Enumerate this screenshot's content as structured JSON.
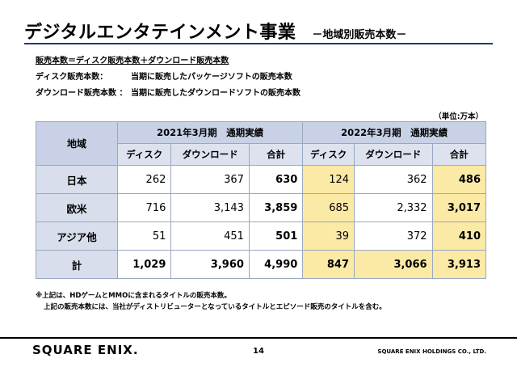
{
  "header": {
    "title": "デジタルエンタテインメント事業",
    "subtitle": "－地域別販売本数－"
  },
  "definitions": {
    "line1": "販売本数＝ディスク販売本数＋ダウンロード販売本数",
    "line2_label": "ディスク販売本数：",
    "line2_text": "当期に販売したパッケージソフトの販売本数",
    "line3_label": "ダウンロード販売本数 ：",
    "line3_text": "当期に販売したダウンロードソフトの販売本数"
  },
  "unit_label": "（単位:万本）",
  "table": {
    "region_header": "地域",
    "period1": "2021年3月期　通期実績",
    "period2": "2022年3月期　通期実績",
    "col_disc": "ディスク",
    "col_dl": "ダウンロード",
    "col_total": "合計",
    "rows": [
      {
        "region": "日本",
        "d1": "262",
        "dl1": "367",
        "t1": "630",
        "d2": "124",
        "dl2": "362",
        "t2": "486"
      },
      {
        "region": "欧米",
        "d1": "716",
        "dl1": "3,143",
        "t1": "3,859",
        "d2": "685",
        "dl2": "2,332",
        "t2": "3,017"
      },
      {
        "region": "アジア他",
        "d1": "51",
        "dl1": "451",
        "t1": "501",
        "d2": "39",
        "dl2": "372",
        "t2": "410"
      },
      {
        "region": "計",
        "d1": "1,029",
        "dl1": "3,960",
        "t1": "4,990",
        "d2": "847",
        "dl2": "3,066",
        "t2": "3,913"
      }
    ]
  },
  "notes": {
    "note1": "※上記は、HDゲームとMMOに含まれるタイトルの販売本数。",
    "note2": "上記の販売本数には、当社がディストリビューターとなっているタイトルとエピソード販売のタイトルを含む。"
  },
  "footer": {
    "logo": "SQUARE ENIX.",
    "page": "14",
    "company": "SQUARE ENIX HOLDINGS CO., LTD."
  }
}
